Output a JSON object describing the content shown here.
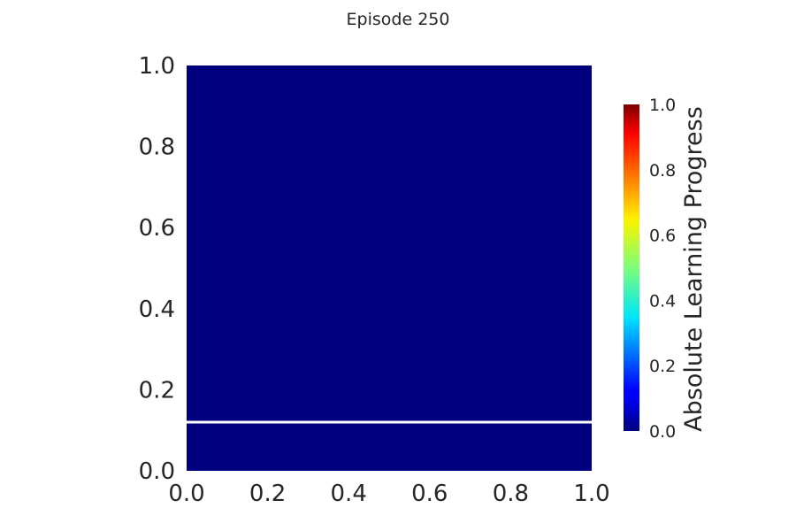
{
  "chart_data": {
    "type": "heatmap",
    "title": "Episode 250",
    "xlabel": "",
    "ylabel": "",
    "xlim": [
      0.0,
      1.0
    ],
    "ylim": [
      0.0,
      1.0
    ],
    "x_ticks": [
      "0.0",
      "0.2",
      "0.4",
      "0.6",
      "0.8",
      "1.0"
    ],
    "y_ticks": [
      "0.0",
      "0.2",
      "0.4",
      "0.6",
      "0.8",
      "1.0"
    ],
    "regions": [
      {
        "x": [
          0.0,
          1.0
        ],
        "y": [
          0.0,
          0.12
        ],
        "value": 0.0
      },
      {
        "x": [
          0.0,
          1.0
        ],
        "y": [
          0.12,
          1.0
        ],
        "value": 0.0
      }
    ],
    "boundary_lines": [
      {
        "orientation": "horizontal",
        "y": 0.12,
        "x": [
          0.0,
          1.0
        ],
        "color": "#ffffff"
      }
    ],
    "colorbar": {
      "label": "Absolute Learning Progress",
      "colormap": "jet",
      "range": [
        0.0,
        1.0
      ],
      "ticks": [
        "0.0",
        "0.2",
        "0.4",
        "0.6",
        "0.8",
        "1.0"
      ]
    },
    "grid": false,
    "colors": {
      "low": "#00007f",
      "text": "#262626"
    }
  }
}
